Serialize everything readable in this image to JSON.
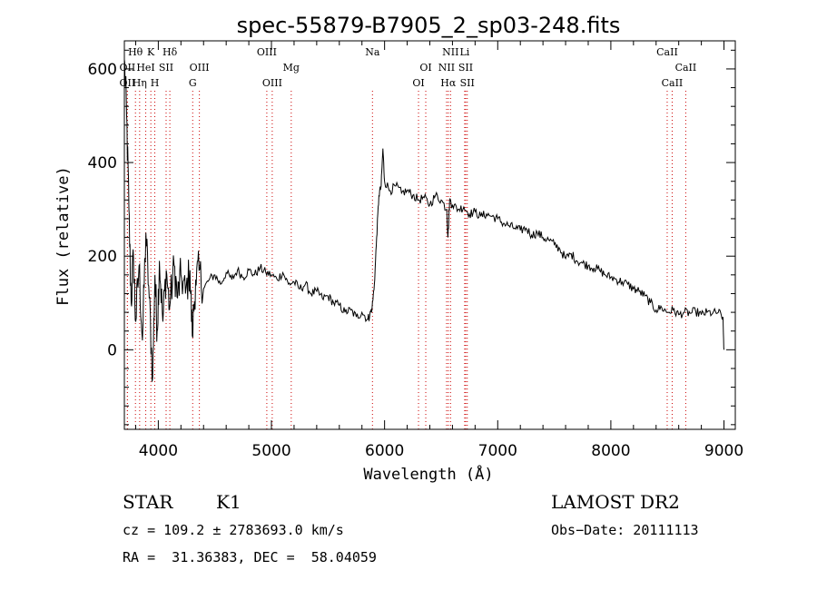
{
  "chart_data": {
    "type": "line",
    "title": "spec-55879-B7905_2_sp03-248.fits",
    "xlabel": "Wavelength (Å)",
    "ylabel": "Flux (relative)",
    "xlim": [
      3700,
      9100
    ],
    "ylim": [
      -170,
      660
    ],
    "x_ticks": [
      4000,
      5000,
      6000,
      7000,
      8000,
      9000
    ],
    "y_ticks": [
      0,
      200,
      400,
      600
    ],
    "grid": false,
    "series": [
      {
        "color": "#000000",
        "points": [
          [
            3700,
            620
          ],
          [
            3720,
            500
          ],
          [
            3740,
            300
          ],
          [
            3760,
            100
          ],
          [
            3780,
            200
          ],
          [
            3800,
            60
          ],
          [
            3830,
            180
          ],
          [
            3860,
            20
          ],
          [
            3890,
            250
          ],
          [
            3920,
            110
          ],
          [
            3950,
            -60
          ],
          [
            3970,
            160
          ],
          [
            3990,
            40
          ],
          [
            4010,
            190
          ],
          [
            4040,
            60
          ],
          [
            4070,
            170
          ],
          [
            4100,
            90
          ],
          [
            4140,
            180
          ],
          [
            4170,
            110
          ],
          [
            4200,
            160
          ],
          [
            4240,
            120
          ],
          [
            4280,
            170
          ],
          [
            4300,
            30
          ],
          [
            4330,
            150
          ],
          [
            4360,
            170
          ],
          [
            4400,
            130
          ],
          [
            4450,
            150
          ],
          [
            4500,
            160
          ],
          [
            4550,
            140
          ],
          [
            4600,
            165
          ],
          [
            4650,
            150
          ],
          [
            4700,
            170
          ],
          [
            4750,
            155
          ],
          [
            4800,
            170
          ],
          [
            4850,
            160
          ],
          [
            4900,
            175
          ],
          [
            4950,
            165
          ],
          [
            5000,
            160
          ],
          [
            5050,
            150
          ],
          [
            5100,
            165
          ],
          [
            5150,
            140
          ],
          [
            5200,
            145
          ],
          [
            5250,
            130
          ],
          [
            5300,
            140
          ],
          [
            5350,
            120
          ],
          [
            5400,
            125
          ],
          [
            5450,
            110
          ],
          [
            5500,
            115
          ],
          [
            5550,
            100
          ],
          [
            5600,
            95
          ],
          [
            5650,
            80
          ],
          [
            5700,
            85
          ],
          [
            5750,
            70
          ],
          [
            5800,
            80
          ],
          [
            5850,
            65
          ],
          [
            5870,
            75
          ],
          [
            5890,
            90
          ],
          [
            5910,
            140
          ],
          [
            5930,
            240
          ],
          [
            5950,
            330
          ],
          [
            5970,
            350
          ],
          [
            5985,
            430
          ],
          [
            6000,
            360
          ],
          [
            6050,
            340
          ],
          [
            6100,
            350
          ],
          [
            6150,
            335
          ],
          [
            6200,
            340
          ],
          [
            6250,
            330
          ],
          [
            6300,
            320
          ],
          [
            6350,
            325
          ],
          [
            6400,
            310
          ],
          [
            6450,
            330
          ],
          [
            6500,
            320
          ],
          [
            6550,
            300
          ],
          [
            6560,
            240
          ],
          [
            6575,
            320
          ],
          [
            6600,
            310
          ],
          [
            6650,
            300
          ],
          [
            6700,
            305
          ],
          [
            6750,
            290
          ],
          [
            6800,
            295
          ],
          [
            6850,
            285
          ],
          [
            6900,
            290
          ],
          [
            6950,
            285
          ],
          [
            7000,
            280
          ],
          [
            7050,
            270
          ],
          [
            7100,
            265
          ],
          [
            7150,
            260
          ],
          [
            7200,
            255
          ],
          [
            7250,
            260
          ],
          [
            7300,
            245
          ],
          [
            7350,
            250
          ],
          [
            7400,
            240
          ],
          [
            7450,
            235
          ],
          [
            7500,
            225
          ],
          [
            7550,
            215
          ],
          [
            7600,
            195
          ],
          [
            7650,
            205
          ],
          [
            7700,
            190
          ],
          [
            7750,
            185
          ],
          [
            7800,
            180
          ],
          [
            7850,
            175
          ],
          [
            7900,
            170
          ],
          [
            7950,
            160
          ],
          [
            8000,
            155
          ],
          [
            8050,
            150
          ],
          [
            8100,
            145
          ],
          [
            8150,
            140
          ],
          [
            8200,
            130
          ],
          [
            8250,
            125
          ],
          [
            8300,
            115
          ],
          [
            8350,
            100
          ],
          [
            8400,
            85
          ],
          [
            8450,
            90
          ],
          [
            8500,
            80
          ],
          [
            8550,
            85
          ],
          [
            8600,
            75
          ],
          [
            8650,
            80
          ],
          [
            8700,
            78
          ],
          [
            8750,
            82
          ],
          [
            8800,
            75
          ],
          [
            8850,
            80
          ],
          [
            8900,
            78
          ],
          [
            8950,
            80
          ],
          [
            8990,
            70
          ],
          [
            9000,
            0
          ]
        ]
      }
    ],
    "line_markers": [
      {
        "label": "Hθ",
        "x": 3798,
        "row": 0
      },
      {
        "label": "K",
        "x": 3934,
        "row": 0
      },
      {
        "label": "Hδ",
        "x": 4102,
        "row": 0
      },
      {
        "label": "OII",
        "x": 3727,
        "row": 1
      },
      {
        "label": "HeI",
        "x": 3889,
        "row": 1
      },
      {
        "label": "SII",
        "x": 4069,
        "row": 1
      },
      {
        "label": "OII",
        "x": 3727,
        "row": 2
      },
      {
        "label": "Hη",
        "x": 3835,
        "row": 2
      },
      {
        "label": "H",
        "x": 3969,
        "row": 2
      },
      {
        "label": "OIII",
        "x": 4363,
        "row": 1
      },
      {
        "label": "G",
        "x": 4304,
        "row": 2
      },
      {
        "label": "OIII",
        "x": 4959,
        "row": 0
      },
      {
        "label": "Mg",
        "x": 5175,
        "row": 1
      },
      {
        "label": "OIII",
        "x": 5007,
        "row": 2
      },
      {
        "label": "Na",
        "x": 5893,
        "row": 0
      },
      {
        "label": "OI",
        "x": 6364,
        "row": 1
      },
      {
        "label": "OI",
        "x": 6300,
        "row": 2
      },
      {
        "label": "NII",
        "x": 6583,
        "row": 0
      },
      {
        "label": "Li",
        "x": 6708,
        "row": 0
      },
      {
        "label": "NII",
        "x": 6548,
        "row": 1
      },
      {
        "label": "SII",
        "x": 6717,
        "row": 1
      },
      {
        "label": "Hα",
        "x": 6563,
        "row": 2
      },
      {
        "label": "SII",
        "x": 6731,
        "row": 2
      },
      {
        "label": "CaII",
        "x": 8498,
        "row": 0
      },
      {
        "label": "CaII",
        "x": 8662,
        "row": 1
      },
      {
        "label": "CaII",
        "x": 8542,
        "row": 2
      }
    ],
    "marker_color": "#cc0000"
  },
  "info": {
    "object_class": "STAR",
    "subclass": "K1",
    "survey": "LAMOST DR2",
    "redshift_line": "cz = 109.2 ± 2783693.0 km/s",
    "obs_date": "Obs−Date: 20111113",
    "coords": "RA =  31.36383, DEC =  58.04059"
  }
}
